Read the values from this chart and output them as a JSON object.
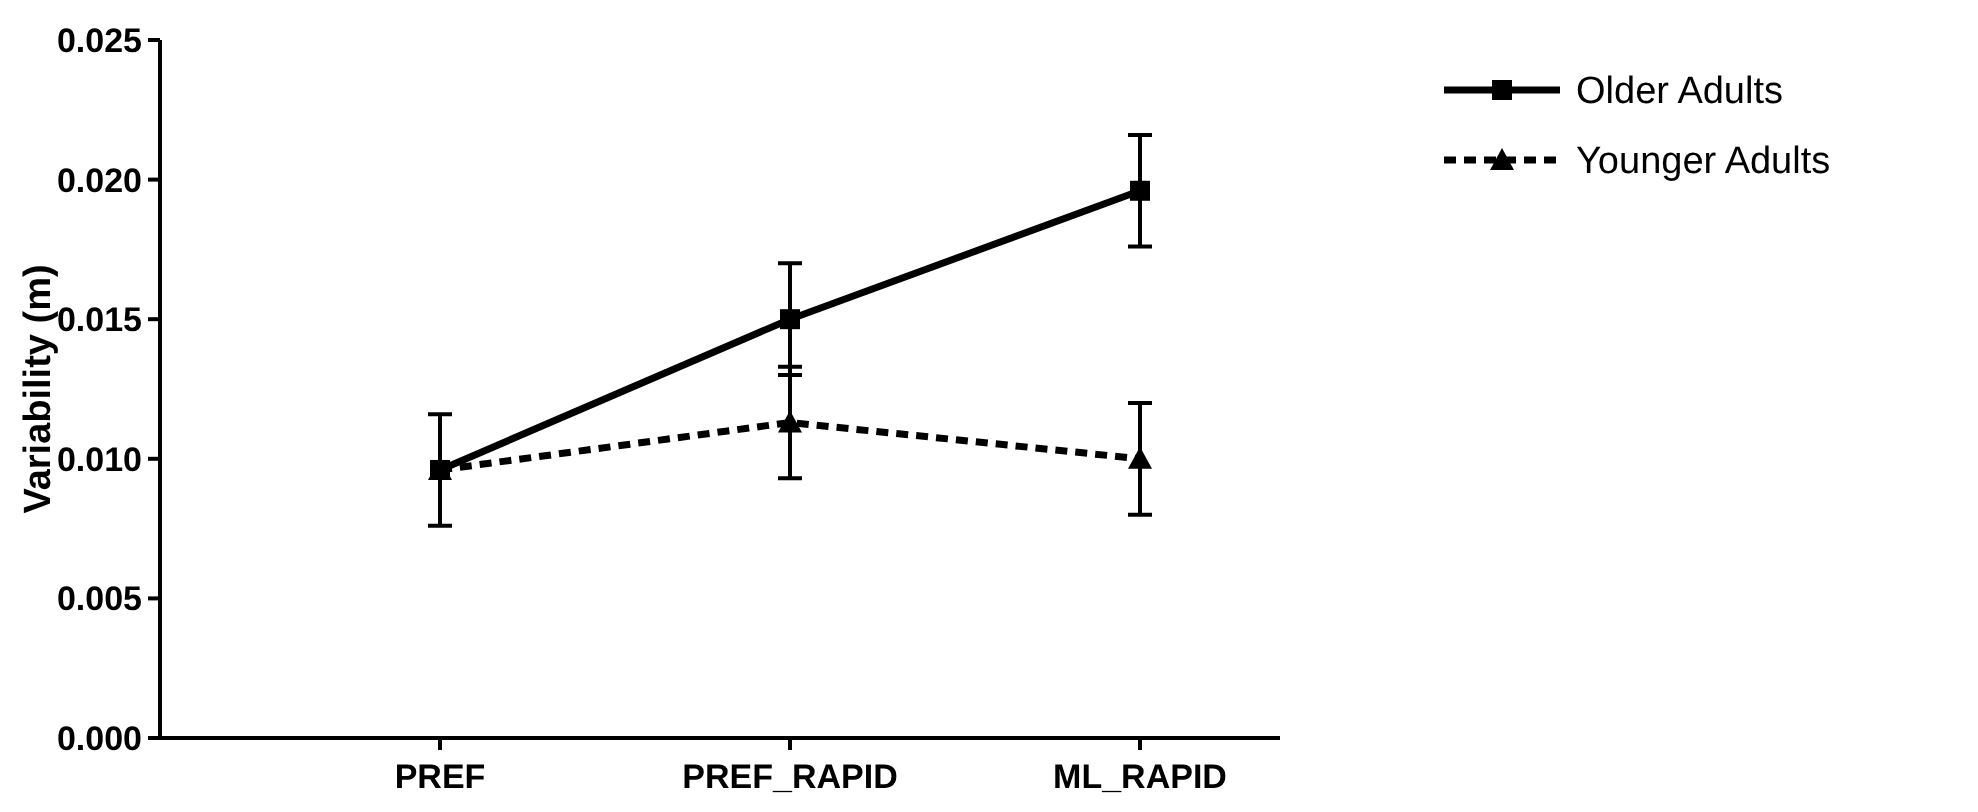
{
  "chart_data": {
    "type": "line",
    "ylabel": "Variability (m)",
    "categories": [
      "PREF",
      "PREF_RAPID",
      "ML_RAPID"
    ],
    "series": [
      {
        "name": "Older Adults",
        "color": "#000000",
        "marker": "square",
        "line_style": "solid",
        "values": [
          0.0096,
          0.015,
          0.0196
        ],
        "errors": [
          0.002,
          0.002,
          0.002
        ]
      },
      {
        "name": "Younger Adults",
        "color": "#000000",
        "marker": "triangle",
        "line_style": "dashed",
        "values": [
          0.0096,
          0.0113,
          0.01
        ],
        "errors": [
          null,
          0.002,
          0.002
        ]
      }
    ],
    "ylim": [
      0,
      0.025
    ],
    "yticks": [
      {
        "value": 0,
        "label": "0.000"
      },
      {
        "value": 0.005,
        "label": "0.005"
      },
      {
        "value": 0.01,
        "label": "0.010"
      },
      {
        "value": 0.015,
        "label": "0.015"
      },
      {
        "value": 0.02,
        "label": "0.020"
      },
      {
        "value": 0.025,
        "label": "0.025"
      }
    ],
    "grid": false,
    "legend": "top right"
  }
}
